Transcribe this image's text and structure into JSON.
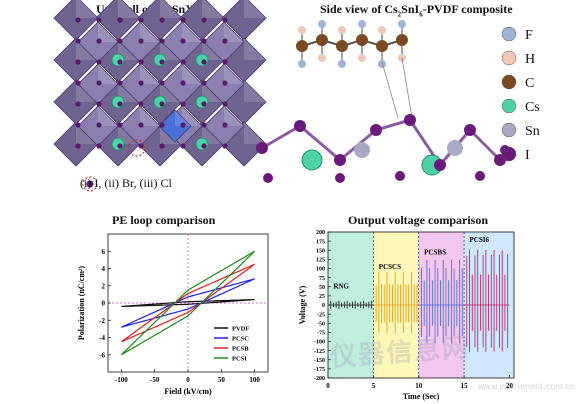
{
  "panels": {
    "unit_cell": {
      "title_pre": "Unit cell of Cs",
      "title_sub1": "2",
      "title_mid": "SnX",
      "title_sub2": "6",
      "legend": "(i) I, (ii) Br, (iii) Cl"
    },
    "side_view": {
      "title_pre": "Side view of Cs",
      "title_sub1": "2",
      "title_mid": "SnI",
      "title_sub2": "6",
      "title_post": "-PVDF composite",
      "atoms": [
        {
          "label": "F",
          "color": "#9fb3d9"
        },
        {
          "label": "H",
          "color": "#f2c7b8"
        },
        {
          "label": "C",
          "color": "#7a4a22"
        },
        {
          "label": "Cs",
          "color": "#4fd1a8"
        },
        {
          "label": "Sn",
          "color": "#a9a9c4"
        },
        {
          "label": "I",
          "color": "#6a1a7a"
        }
      ]
    },
    "pe_loop": {
      "title": "PE loop comparison",
      "xlabel": "Field (kV/cm)",
      "ylabel": "Polarization (nC/cm²)"
    },
    "output": {
      "title": "Output  voltage comparison",
      "xlabel": "Time (Sec)",
      "ylabel": "Voltage (V)"
    }
  },
  "watermark": {
    "text": "仪器信息网",
    "url": "www.instrument.com.cn"
  },
  "chart_data": [
    {
      "type": "line",
      "title": "PE loop comparison",
      "xlabel": "Field (kV/cm)",
      "ylabel": "Polarization (nC/cm²)",
      "xlim": [
        -120,
        120
      ],
      "ylim": [
        -8,
        8
      ],
      "xticks": [
        -100,
        -50,
        0,
        50,
        100
      ],
      "yticks": [
        -6,
        -4,
        -2,
        0,
        2,
        4,
        6
      ],
      "legend_position": "bottom-right",
      "series": [
        {
          "name": "PVDF",
          "color": "#111111",
          "remanent": 0.15,
          "max": 0.4
        },
        {
          "name": "PCSC",
          "color": "#2222dd",
          "remanent": 0.7,
          "max": 2.8
        },
        {
          "name": "PCSB",
          "color": "#dd2222",
          "remanent": 1.1,
          "max": 4.5
        },
        {
          "name": "PCSI",
          "color": "#1a8a1a",
          "remanent": 1.5,
          "max": 6.0
        }
      ]
    },
    {
      "type": "line",
      "title": "Output  voltage comparison",
      "xlabel": "Time (Sec)",
      "ylabel": "Voltage (V)",
      "xlim": [
        0,
        20.5
      ],
      "ylim": [
        -200,
        200
      ],
      "xticks": [
        0,
        5,
        10,
        15,
        20
      ],
      "yticks": [
        -200,
        -175,
        -150,
        -125,
        -100,
        -75,
        -50,
        -25,
        0,
        25,
        50,
        75,
        100,
        125,
        150,
        175,
        200
      ],
      "series": [
        {
          "name": "RNG",
          "color": "#222222",
          "bg": "#bfeedd",
          "x_range": [
            0,
            5
          ],
          "amplitude": 12
        },
        {
          "name": "PCSCS",
          "color": "#e8a010",
          "bg": "#fff7b8",
          "x_range": [
            5,
            10
          ],
          "amplitude": 90
        },
        {
          "name": "PCSBS",
          "color": "#4a6fd8",
          "bg": "#f3c8ee",
          "x_range": [
            10,
            15
          ],
          "amplitude": 130
        },
        {
          "name": "PCSI6",
          "color": "#cc2266",
          "bg": "#cfe8ff",
          "x_range": [
            15,
            20
          ],
          "amplitude": 165
        }
      ]
    }
  ]
}
